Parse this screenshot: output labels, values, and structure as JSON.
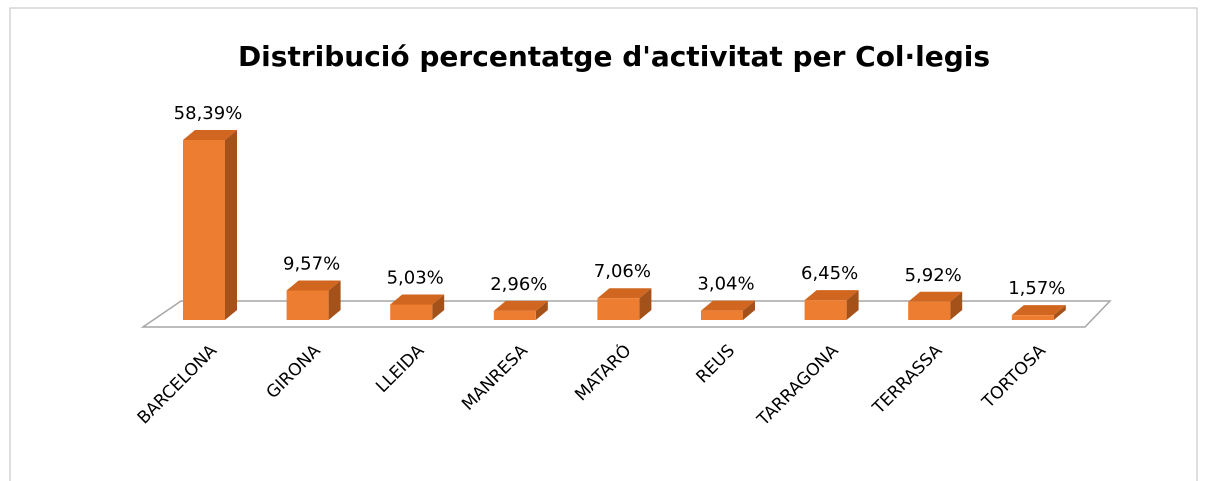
{
  "chart_data": {
    "type": "bar3d",
    "title": "Distribució percentatge d'activitat per Col·legis",
    "categories": [
      "BARCELONA",
      "GIRONA",
      "LLEIDA",
      "MANRESA",
      "MATARÓ",
      "REUS",
      "TARRAGONA",
      "TERRASSA",
      "TORTOSA"
    ],
    "values": [
      58.39,
      9.57,
      5.03,
      2.96,
      7.06,
      3.04,
      6.45,
      5.92,
      1.57
    ],
    "value_labels": [
      "58,39%",
      "9,57%",
      "5,03%",
      "2,96%",
      "7,06%",
      "3,04%",
      "6,45%",
      "5,92%",
      "1,57%"
    ],
    "color": "#ED7D31"
  }
}
